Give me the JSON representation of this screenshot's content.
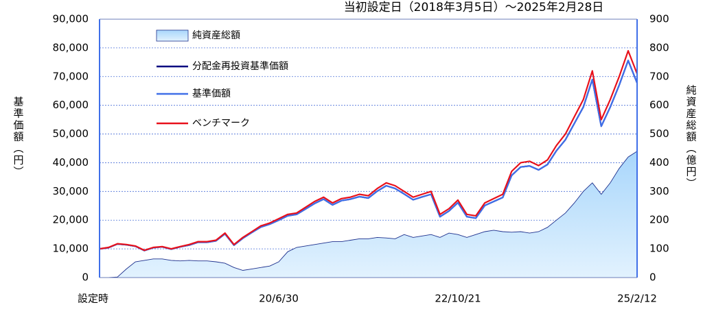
{
  "chart_data": {
    "type": "line",
    "title": "当初設定日（2018年3月5日）～2025年2月28日",
    "y_label": "基準価額（円）",
    "y2_label": "純資産総額（億円）",
    "categories": [
      "設定時",
      null,
      null,
      null,
      null,
      null,
      null,
      null,
      null,
      null,
      null,
      null,
      null,
      null,
      null,
      null,
      null,
      null,
      null,
      null,
      "20/6/30",
      null,
      null,
      null,
      null,
      null,
      null,
      null,
      null,
      null,
      null,
      null,
      null,
      null,
      null,
      null,
      null,
      null,
      null,
      null,
      "22/10/21",
      null,
      null,
      null,
      null,
      null,
      null,
      null,
      null,
      null,
      null,
      null,
      null,
      null,
      null,
      null,
      null,
      null,
      null,
      null,
      "25/2/12"
    ],
    "ylim": [
      0,
      90000
    ],
    "yticks": [
      0,
      {
        "value": 10000,
        "label": "10,000"
      },
      {
        "value": 20000,
        "label": "20,000"
      },
      {
        "value": 30000,
        "label": "30,000"
      },
      {
        "value": 40000,
        "label": "40,000"
      },
      {
        "value": 50000,
        "label": "50,000"
      },
      {
        "value": 60000,
        "label": "60,000"
      },
      {
        "value": 70000,
        "label": "70,000"
      },
      {
        "value": 80000,
        "label": "80,000"
      },
      {
        "value": 90000,
        "label": "90,000"
      }
    ],
    "y2lim": [
      0,
      900
    ],
    "y2ticks": [
      0,
      100,
      200,
      300,
      400,
      500,
      600,
      700,
      800,
      900
    ],
    "grid": true,
    "series": [
      {
        "name": "純資産総額",
        "color": "#8fc8f5",
        "axis": "y2",
        "fill": true,
        "values": [
          0,
          0,
          2,
          30,
          55,
          60,
          65,
          65,
          60,
          58,
          60,
          58,
          58,
          55,
          50,
          35,
          25,
          30,
          35,
          40,
          55,
          90,
          105,
          110,
          115,
          120,
          125,
          125,
          130,
          135,
          135,
          140,
          138,
          135,
          150,
          140,
          145,
          150,
          140,
          155,
          150,
          140,
          150,
          160,
          165,
          160,
          158,
          160,
          155,
          160,
          175,
          200,
          225,
          260,
          300,
          330,
          290,
          330,
          380,
          420,
          440
        ]
      },
      {
        "name": "分配金再投資基準価額",
        "color": "#000080",
        "values": [
          10000,
          10400,
          11700,
          11400,
          10900,
          9400,
          10400,
          10700,
          9900,
          10700,
          11300,
          12300,
          12300,
          12800,
          15200,
          11300,
          13700,
          15700,
          17600,
          18600,
          20000,
          21500,
          22000,
          23900,
          25800,
          27300,
          25300,
          26800,
          27300,
          28200,
          27700,
          30100,
          32000,
          31000,
          29100,
          27100,
          28100,
          29000,
          21200,
          23200,
          26100,
          21200,
          20700,
          25100,
          26500,
          27900,
          35600,
          38500,
          38900,
          37500,
          39400,
          44200,
          48000,
          53700,
          59400,
          69000,
          52700,
          59400,
          67000,
          75600,
          67800
        ]
      },
      {
        "name": "基準価額",
        "color": "#3f6fe8",
        "values": [
          10000,
          10400,
          11700,
          11400,
          10900,
          9400,
          10400,
          10700,
          9900,
          10700,
          11300,
          12300,
          12300,
          12800,
          15200,
          11300,
          13700,
          15700,
          17600,
          18600,
          20000,
          21500,
          22000,
          23900,
          25800,
          27300,
          25300,
          26800,
          27300,
          28200,
          27700,
          30100,
          32000,
          31000,
          29100,
          27100,
          28100,
          29000,
          21200,
          23200,
          26100,
          21200,
          20700,
          25100,
          26500,
          27900,
          35600,
          38500,
          38900,
          37500,
          39400,
          44200,
          48000,
          53700,
          59400,
          69000,
          52700,
          59400,
          67000,
          75600,
          67800
        ]
      },
      {
        "name": "ベンチマーク",
        "color": "#e8101a",
        "values": [
          10000,
          10500,
          11800,
          11500,
          11000,
          9500,
          10500,
          10800,
          10000,
          10800,
          11500,
          12500,
          12500,
          13000,
          15500,
          11500,
          14000,
          16000,
          18000,
          19000,
          20500,
          22000,
          22500,
          24500,
          26500,
          28000,
          26000,
          27500,
          28000,
          29000,
          28500,
          31000,
          33000,
          32000,
          30000,
          28000,
          29000,
          30000,
          22000,
          24000,
          27000,
          22000,
          21500,
          26000,
          27500,
          29000,
          37000,
          40000,
          40500,
          39000,
          41000,
          46000,
          50000,
          56000,
          62000,
          72000,
          55000,
          62000,
          70000,
          79000,
          71000
        ]
      }
    ]
  }
}
